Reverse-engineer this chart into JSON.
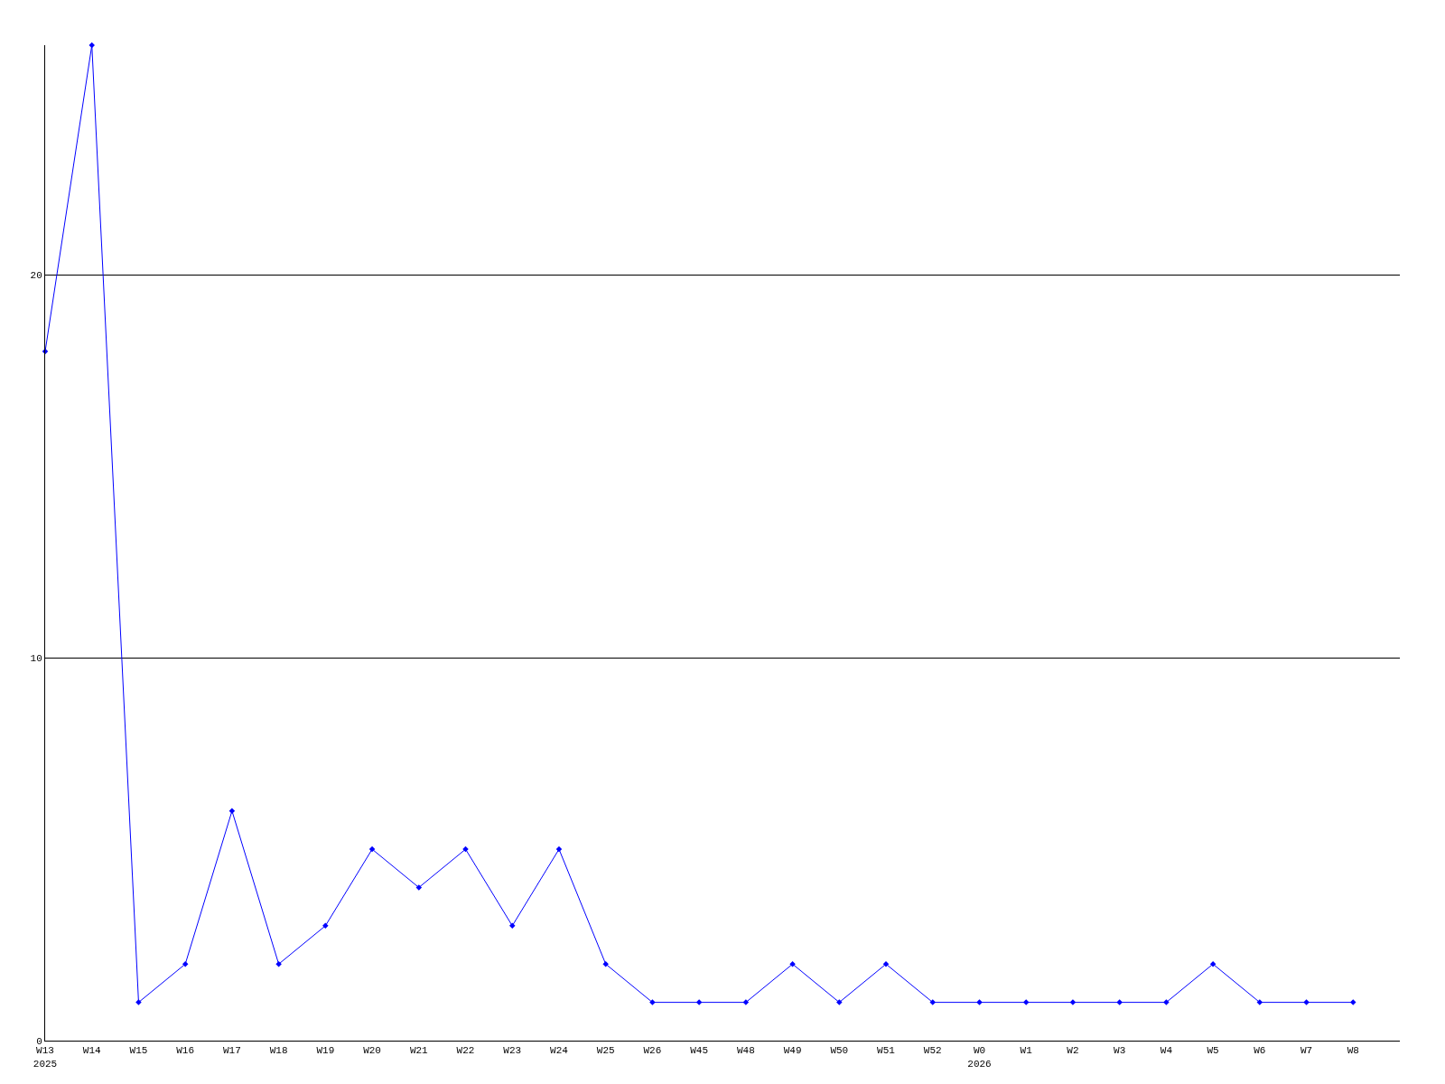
{
  "chart_data": {
    "type": "line",
    "categories": [
      "W13\n2025",
      "W14",
      "W15",
      "W16",
      "W17",
      "W18",
      "W19",
      "W20",
      "W21",
      "W22",
      "W23",
      "W24",
      "W25",
      "W26",
      "W45",
      "W48",
      "W49",
      "W50",
      "W51",
      "W52",
      "W0\n2026",
      "W1",
      "W2",
      "W3",
      "W4",
      "W5",
      "W6",
      "W7",
      "W8"
    ],
    "series": [
      {
        "color": "#0000ff",
        "values": [
          18,
          26,
          1,
          2,
          6,
          2,
          3,
          5,
          4,
          5,
          3,
          5,
          2,
          1,
          1,
          1,
          2,
          1,
          2,
          1,
          1,
          1,
          1,
          1,
          1,
          2,
          1,
          1,
          1
        ]
      }
    ],
    "ylim": [
      0,
      26
    ],
    "yticks": [
      0,
      10,
      20
    ],
    "grid": "y",
    "marker": "diamond"
  }
}
